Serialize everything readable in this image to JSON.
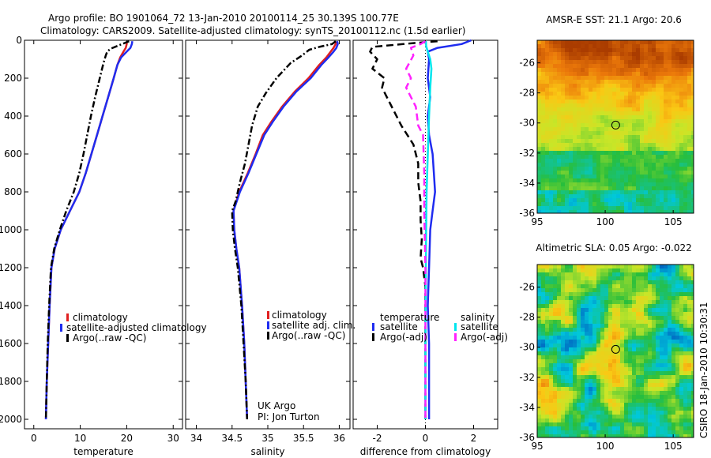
{
  "figure": {
    "title_line1": "Argo profile: BO 1901064_72 13-Jan-2010 20100114_25 30.139S 100.77E",
    "title_line2": "Climatology: CARS2009. Satellite-adjusted climatology: synTS_20100112.nc (1.5d earlier)",
    "side_label": "CSIRO 18-Jan-2010 10:30:31",
    "colors": {
      "red": "#e02020",
      "blue": "#1f2cf0",
      "black": "#000000",
      "cyan": "#00e5ee",
      "magenta": "#ff22ff"
    }
  },
  "chart_data": [
    {
      "id": "temperature",
      "type": "line",
      "xlabel": "temperature",
      "ylabel": "",
      "xlim": [
        -2,
        32
      ],
      "ylim": [
        2050,
        0
      ],
      "xticks": [
        0,
        10,
        20,
        30
      ],
      "yticks": [
        0,
        200,
        400,
        600,
        800,
        1000,
        1200,
        1400,
        1600,
        1800,
        2000
      ],
      "legend": [
        "climatology",
        "satellite-adjusted climatology",
        "Argo(..raw -QC)"
      ],
      "series": [
        {
          "name": "climatology",
          "color": "red",
          "dash": "solid",
          "points": [
            [
              20.0,
              5
            ],
            [
              20.0,
              20
            ],
            [
              19.8,
              40
            ],
            [
              19.3,
              60
            ],
            [
              18.6,
              90
            ],
            [
              18.0,
              130
            ],
            [
              17.2,
              200
            ],
            [
              16.0,
              300
            ],
            [
              14.8,
              400
            ],
            [
              13.6,
              500
            ],
            [
              12.4,
              600
            ],
            [
              11.2,
              700
            ],
            [
              9.8,
              800
            ],
            [
              7.8,
              900
            ],
            [
              5.8,
              1000
            ],
            [
              4.5,
              1100
            ],
            [
              3.8,
              1200
            ],
            [
              3.4,
              1400
            ],
            [
              3.1,
              1600
            ],
            [
              2.8,
              1800
            ],
            [
              2.6,
              2000
            ]
          ]
        },
        {
          "name": "satellite-adjusted climatology",
          "color": "blue",
          "dash": "solid",
          "points": [
            [
              21.2,
              5
            ],
            [
              21.1,
              20
            ],
            [
              20.8,
              40
            ],
            [
              20.0,
              60
            ],
            [
              18.8,
              90
            ],
            [
              18.0,
              130
            ],
            [
              17.2,
              200
            ],
            [
              16.0,
              300
            ],
            [
              14.8,
              400
            ],
            [
              13.6,
              500
            ],
            [
              12.4,
              600
            ],
            [
              11.2,
              700
            ],
            [
              9.8,
              800
            ],
            [
              7.8,
              900
            ],
            [
              5.8,
              1000
            ],
            [
              4.5,
              1100
            ],
            [
              3.8,
              1200
            ],
            [
              3.4,
              1400
            ],
            [
              3.1,
              1600
            ],
            [
              2.8,
              1800
            ],
            [
              2.6,
              2000
            ]
          ]
        },
        {
          "name": "Argo(..raw -QC)",
          "color": "black",
          "dash": "dashdot",
          "points": [
            [
              20.5,
              5
            ],
            [
              19.5,
              15
            ],
            [
              18.0,
              30
            ],
            [
              16.5,
              45
            ],
            [
              15.8,
              60
            ],
            [
              15.5,
              80
            ],
            [
              15.0,
              120
            ],
            [
              14.2,
              200
            ],
            [
              13.2,
              300
            ],
            [
              12.3,
              400
            ],
            [
              11.5,
              500
            ],
            [
              10.7,
              600
            ],
            [
              9.8,
              700
            ],
            [
              8.6,
              800
            ],
            [
              7.0,
              900
            ],
            [
              5.6,
              1000
            ],
            [
              4.4,
              1100
            ],
            [
              3.7,
              1200
            ],
            [
              3.3,
              1400
            ],
            [
              3.0,
              1600
            ],
            [
              2.8,
              1800
            ],
            [
              2.6,
              2000
            ]
          ]
        }
      ]
    },
    {
      "id": "salinity",
      "type": "line",
      "xlabel": "salinity",
      "ylabel": "",
      "xlim": [
        33.85,
        36.15
      ],
      "ylim": [
        2050,
        0
      ],
      "xticks": [
        34,
        34.5,
        35,
        35.5,
        36
      ],
      "yticks": [
        0,
        200,
        400,
        600,
        800,
        1000,
        1200,
        1400,
        1600,
        1800,
        2000
      ],
      "legend": [
        "climatology",
        "satellite adj. clim.",
        "Argo(..raw -QC)"
      ],
      "annotation": [
        "UK Argo",
        "PI: Jon Turton"
      ],
      "series": [
        {
          "name": "climatology",
          "color": "red",
          "dash": "solid",
          "points": [
            [
              35.95,
              5
            ],
            [
              35.95,
              20
            ],
            [
              35.92,
              40
            ],
            [
              35.88,
              60
            ],
            [
              35.82,
              90
            ],
            [
              35.72,
              130
            ],
            [
              35.57,
              200
            ],
            [
              35.38,
              270
            ],
            [
              35.2,
              350
            ],
            [
              35.05,
              430
            ],
            [
              34.93,
              500
            ],
            [
              34.83,
              600
            ],
            [
              34.72,
              700
            ],
            [
              34.6,
              800
            ],
            [
              34.52,
              900
            ],
            [
              34.53,
              1000
            ],
            [
              34.56,
              1100
            ],
            [
              34.6,
              1200
            ],
            [
              34.64,
              1400
            ],
            [
              34.67,
              1600
            ],
            [
              34.69,
              1800
            ],
            [
              34.71,
              2000
            ]
          ]
        },
        {
          "name": "satellite adj. clim.",
          "color": "blue",
          "dash": "solid",
          "points": [
            [
              35.97,
              5
            ],
            [
              35.98,
              20
            ],
            [
              35.96,
              40
            ],
            [
              35.92,
              60
            ],
            [
              35.85,
              90
            ],
            [
              35.75,
              130
            ],
            [
              35.6,
              200
            ],
            [
              35.4,
              270
            ],
            [
              35.22,
              350
            ],
            [
              35.07,
              430
            ],
            [
              34.95,
              500
            ],
            [
              34.84,
              600
            ],
            [
              34.73,
              700
            ],
            [
              34.61,
              800
            ],
            [
              34.52,
              900
            ],
            [
              34.53,
              1000
            ],
            [
              34.56,
              1100
            ],
            [
              34.6,
              1200
            ],
            [
              34.64,
              1400
            ],
            [
              34.67,
              1600
            ],
            [
              34.69,
              1800
            ],
            [
              34.71,
              2000
            ]
          ]
        },
        {
          "name": "Argo(..raw -QC)",
          "color": "black",
          "dash": "dashdot",
          "points": [
            [
              35.95,
              5
            ],
            [
              35.9,
              20
            ],
            [
              35.72,
              35
            ],
            [
              35.58,
              50
            ],
            [
              35.48,
              80
            ],
            [
              35.32,
              120
            ],
            [
              35.12,
              200
            ],
            [
              34.97,
              280
            ],
            [
              34.86,
              350
            ],
            [
              34.78,
              450
            ],
            [
              34.73,
              550
            ],
            [
              34.68,
              650
            ],
            [
              34.61,
              750
            ],
            [
              34.55,
              850
            ],
            [
              34.5,
              900
            ],
            [
              34.51,
              1000
            ],
            [
              34.54,
              1100
            ],
            [
              34.58,
              1200
            ],
            [
              34.63,
              1400
            ],
            [
              34.66,
              1600
            ],
            [
              34.69,
              1800
            ],
            [
              34.71,
              2000
            ]
          ]
        }
      ]
    },
    {
      "id": "difference",
      "type": "line",
      "xlabel": "difference from climatology",
      "ylabel": "",
      "xlim": [
        -3,
        3
      ],
      "ylim": [
        2050,
        0
      ],
      "xticks": [
        -2,
        0,
        2
      ],
      "yticks": [
        0,
        200,
        400,
        600,
        800,
        1000,
        1200,
        1400,
        1600,
        1800,
        2000
      ],
      "legend_headings": [
        "temperature",
        "salinity"
      ],
      "legend": [
        "satellite",
        "Argo(-adj)",
        "satellite",
        "Argo(-adj)"
      ],
      "series": [
        {
          "name": "satellite",
          "group": "temperature",
          "color": "blue",
          "dash": "solid",
          "points": [
            [
              1.9,
              0
            ],
            [
              1.5,
              20
            ],
            [
              0.5,
              40
            ],
            [
              0.1,
              60
            ],
            [
              0.15,
              100
            ],
            [
              0.1,
              200
            ],
            [
              0.2,
              300
            ],
            [
              0.1,
              400
            ],
            [
              0.15,
              500
            ],
            [
              0.3,
              600
            ],
            [
              0.35,
              700
            ],
            [
              0.4,
              800
            ],
            [
              0.3,
              900
            ],
            [
              0.2,
              1000
            ],
            [
              0.15,
              1200
            ],
            [
              0.1,
              1400
            ],
            [
              0.15,
              1600
            ],
            [
              0.15,
              1800
            ],
            [
              0.15,
              2000
            ]
          ]
        },
        {
          "name": "Argo(-adj)",
          "group": "temperature",
          "color": "black",
          "dash": "dashed",
          "points": [
            [
              0.5,
              5
            ],
            [
              -0.5,
              15
            ],
            [
              -2.2,
              35
            ],
            [
              -2.3,
              60
            ],
            [
              -2.0,
              100
            ],
            [
              -2.2,
              150
            ],
            [
              -1.7,
              200
            ],
            [
              -1.8,
              250
            ],
            [
              -1.4,
              350
            ],
            [
              -1.0,
              450
            ],
            [
              -0.5,
              550
            ],
            [
              -0.3,
              650
            ],
            [
              -0.3,
              750
            ],
            [
              -0.2,
              850
            ],
            [
              -0.2,
              950
            ],
            [
              -0.15,
              1050
            ],
            [
              -0.2,
              1150
            ],
            [
              -0.1,
              1200
            ],
            [
              0.0,
              1300
            ],
            [
              0.0,
              1600
            ],
            [
              0.0,
              2000
            ]
          ]
        },
        {
          "name": "satellite",
          "group": "salinity",
          "color": "cyan",
          "dash": "solid",
          "points": [
            [
              0.02,
              5
            ],
            [
              0.03,
              30
            ],
            [
              0.1,
              60
            ],
            [
              0.2,
              100
            ],
            [
              0.25,
              150
            ],
            [
              0.2,
              250
            ],
            [
              0.15,
              400
            ],
            [
              0.1,
              600
            ],
            [
              0.05,
              800
            ],
            [
              0.03,
              1000
            ],
            [
              0.02,
              1200
            ],
            [
              0.0,
              1600
            ],
            [
              0.0,
              2000
            ]
          ]
        },
        {
          "name": "Argo(-adj)",
          "group": "salinity",
          "color": "magenta",
          "dash": "dashed",
          "points": [
            [
              0.0,
              5
            ],
            [
              -0.2,
              20
            ],
            [
              -0.6,
              40
            ],
            [
              -0.5,
              80
            ],
            [
              -0.8,
              150
            ],
            [
              -0.6,
              200
            ],
            [
              -0.8,
              250
            ],
            [
              -0.4,
              350
            ],
            [
              -0.3,
              450
            ],
            [
              -0.1,
              500
            ],
            [
              -0.05,
              700
            ],
            [
              -0.05,
              900
            ],
            [
              0.0,
              1200
            ],
            [
              0.0,
              2000
            ]
          ]
        }
      ]
    },
    {
      "id": "sst-map",
      "type": "heatmap",
      "title": "AMSR-E SST: 21.1 Argo: 20.6",
      "xlim": [
        95,
        106.5
      ],
      "ylim": [
        -36,
        -24.5
      ],
      "xticks": [
        95,
        100,
        105
      ],
      "yticks": [
        -26,
        -28,
        -30,
        -32,
        -34,
        -36
      ],
      "marker": [
        100.77,
        -30.139
      ],
      "field": "sst"
    },
    {
      "id": "sla-map",
      "type": "heatmap",
      "title": "Altimetric SLA: 0.05 Argo: -0.022",
      "xlim": [
        95,
        106.5
      ],
      "ylim": [
        -36,
        -24.5
      ],
      "xticks": [
        95,
        100,
        105
      ],
      "yticks": [
        -26,
        -28,
        -30,
        -32,
        -34,
        -36
      ],
      "marker": [
        100.77,
        -30.139
      ],
      "field": "sla"
    }
  ]
}
